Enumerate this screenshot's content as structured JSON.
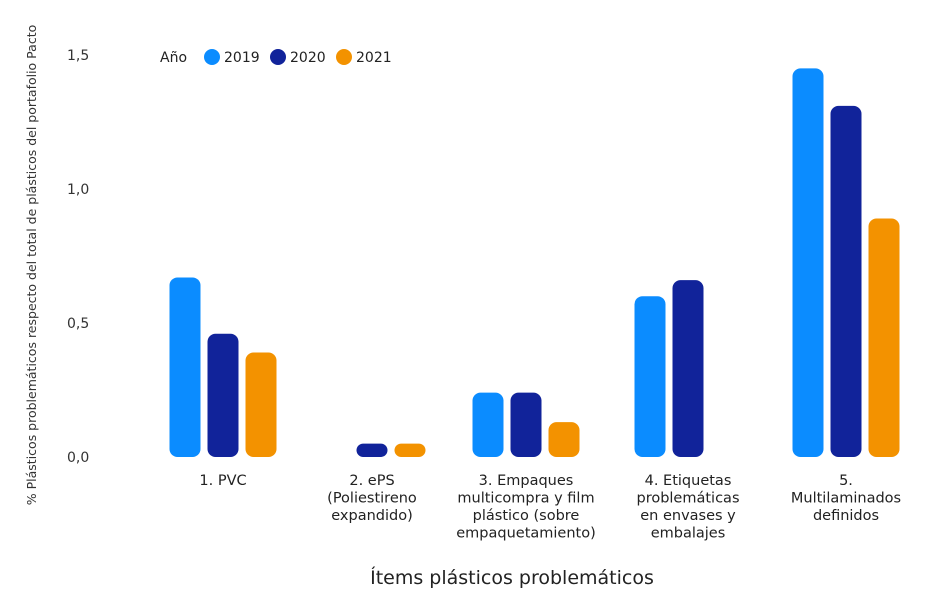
{
  "chart_data": {
    "type": "bar",
    "ylabel": "% Plásticos problemáticos respecto del total de plásticos del portafolio Pacto",
    "xlabel": "Ítems plásticos problemáticos",
    "ylim": [
      0,
      1.5
    ],
    "yticks": [
      {
        "value": 0.0,
        "label": "0,0"
      },
      {
        "value": 0.5,
        "label": "0,5"
      },
      {
        "value": 1.0,
        "label": "1,0"
      },
      {
        "value": 1.5,
        "label": "1,5"
      }
    ],
    "legend": {
      "title": "Año",
      "placement": "top-left"
    },
    "categories": [
      {
        "lines": [
          "1. PVC"
        ]
      },
      {
        "lines": [
          "2. ePS",
          "(Poliestireno",
          "expandido)"
        ]
      },
      {
        "lines": [
          "3. Empaques",
          "multicompra y film",
          "plástico (sobre",
          "empaquetamiento)"
        ]
      },
      {
        "lines": [
          "4. Etiquetas",
          "problemáticas",
          "en envases y",
          "embalajes"
        ]
      },
      {
        "lines": [
          "5.",
          "Multilaminados",
          "definidos"
        ]
      }
    ],
    "series": [
      {
        "name": "2019",
        "color": "#0b8cff",
        "values": [
          0.67,
          null,
          0.24,
          0.6,
          1.45
        ]
      },
      {
        "name": "2020",
        "color": "#11239a",
        "values": [
          0.46,
          0.05,
          0.24,
          0.66,
          1.31
        ]
      },
      {
        "name": "2021",
        "color": "#f39200",
        "values": [
          0.39,
          0.05,
          0.13,
          null,
          0.89
        ]
      }
    ]
  }
}
